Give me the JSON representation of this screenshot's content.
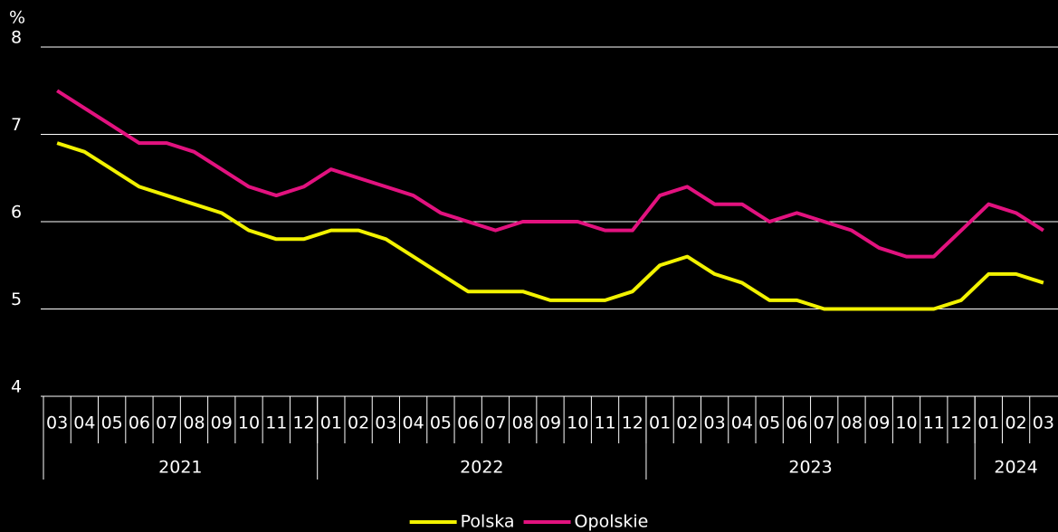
{
  "chart_data": {
    "type": "line",
    "y_label": "%",
    "categories": [
      "03",
      "04",
      "05",
      "06",
      "07",
      "08",
      "09",
      "10",
      "11",
      "12",
      "01",
      "02",
      "03",
      "04",
      "05",
      "06",
      "07",
      "08",
      "09",
      "10",
      "11",
      "12",
      "01",
      "02",
      "03",
      "04",
      "05",
      "06",
      "07",
      "08",
      "09",
      "10",
      "11",
      "12",
      "01",
      "02",
      "03"
    ],
    "year_groups": [
      {
        "label": "2021",
        "span": 10
      },
      {
        "label": "2022",
        "span": 12
      },
      {
        "label": "2023",
        "span": 12
      },
      {
        "label": "2024",
        "span": 3
      }
    ],
    "series": [
      {
        "name": "Polska",
        "color": "#f2f200",
        "values": [
          6.9,
          6.8,
          6.6,
          6.4,
          6.3,
          6.2,
          6.1,
          5.9,
          5.8,
          5.8,
          5.9,
          5.9,
          5.8,
          5.6,
          5.4,
          5.2,
          5.2,
          5.2,
          5.1,
          5.1,
          5.1,
          5.2,
          5.5,
          5.6,
          5.4,
          5.3,
          5.1,
          5.1,
          5.0,
          5.0,
          5.0,
          5.0,
          5.0,
          5.1,
          5.4,
          5.4,
          5.3
        ]
      },
      {
        "name": "Opolskie",
        "color": "#e2127f",
        "values": [
          7.5,
          7.3,
          7.1,
          6.9,
          6.9,
          6.8,
          6.6,
          6.4,
          6.3,
          6.4,
          6.6,
          6.5,
          6.4,
          6.3,
          6.1,
          6.0,
          5.9,
          6.0,
          6.0,
          6.0,
          5.9,
          5.9,
          6.3,
          6.4,
          6.2,
          6.2,
          6.0,
          6.1,
          6.0,
          5.9,
          5.7,
          5.6,
          5.6,
          5.9,
          6.2,
          6.1,
          5.9
        ]
      }
    ],
    "ylim": [
      4,
      8
    ],
    "yticks": [
      4,
      5,
      6,
      7,
      8
    ],
    "grid": true,
    "legend": "bottom"
  }
}
